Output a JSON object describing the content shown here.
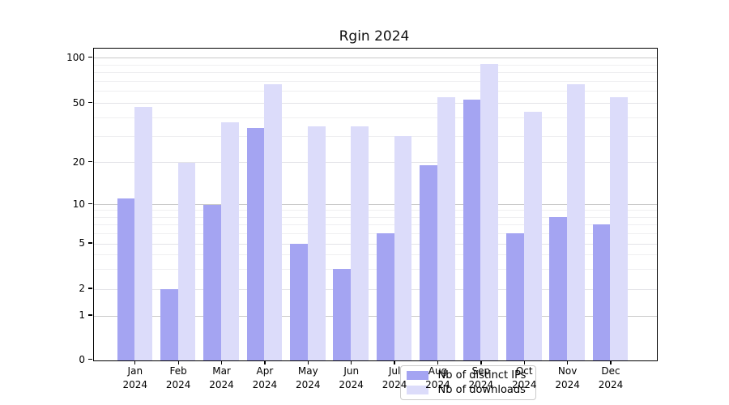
{
  "chart_data": {
    "type": "bar",
    "title": "Rgin 2024",
    "x": {
      "months": [
        "Jan",
        "Feb",
        "Mar",
        "Apr",
        "May",
        "Jun",
        "Jul",
        "Aug",
        "Sep",
        "Oct",
        "Nov",
        "Dec"
      ],
      "year": "2024"
    },
    "series": [
      {
        "name": "Nb of distinct IPs",
        "color": "#a4a4f2",
        "values": [
          11,
          2,
          10,
          34,
          5,
          3,
          6,
          19,
          53,
          6,
          8,
          7
        ]
      },
      {
        "name": "Nb of downloads",
        "color": "#dcdcfa",
        "values": [
          47,
          20,
          37,
          67,
          35,
          35,
          30,
          55,
          91,
          44,
          67,
          55
        ]
      }
    ],
    "y_axis": {
      "scale": "symlog",
      "tick_labels": [
        "0",
        "1",
        "2",
        "5",
        "10",
        "20",
        "50",
        "100"
      ],
      "tick_values": [
        0,
        1,
        2,
        5,
        10,
        20,
        50,
        100
      ],
      "major_gridlines": [
        1,
        10,
        100
      ],
      "mid_gridlines": [
        2,
        5,
        20,
        50
      ],
      "minor_gridlines": [
        3,
        4,
        6,
        7,
        8,
        9,
        30,
        40,
        60,
        70,
        80,
        90
      ],
      "ylim": [
        0,
        113
      ]
    },
    "grid": {
      "enabled": true,
      "major_color": "#c9c9c9",
      "mid_color": "#e4e4e8",
      "minor_color": "#efeff1"
    },
    "legend": {
      "position": "lower center"
    }
  }
}
